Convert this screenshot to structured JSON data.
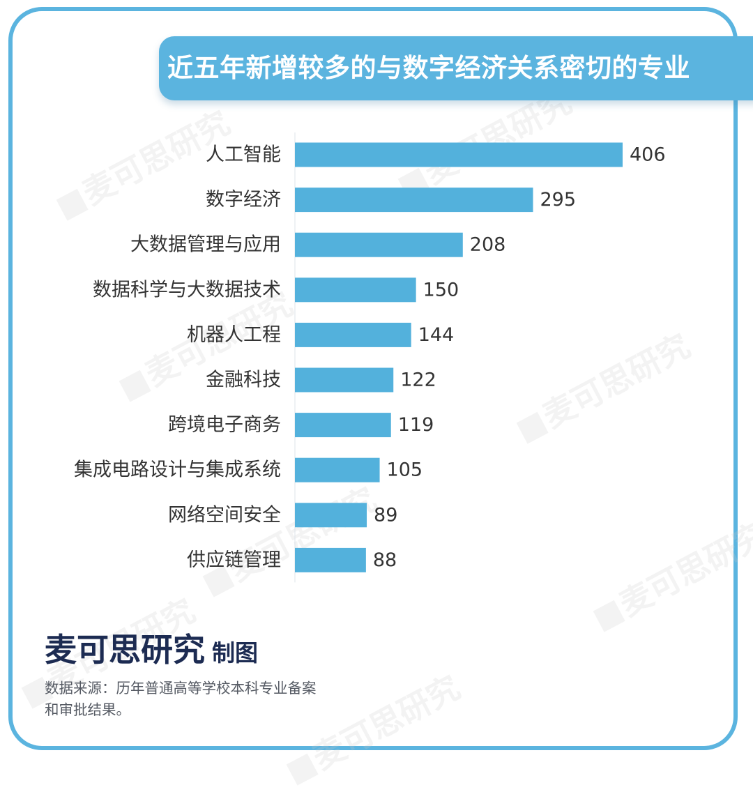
{
  "title": "近五年新增较多的与数字经济关系密切的专业",
  "brand": {
    "name": "麦可思研究",
    "suffix": "制图"
  },
  "source": {
    "line1": "数据来源：历年普通高等学校本科专业备案",
    "line2": "和审批结果。"
  },
  "watermark_text": "麦可思研究",
  "colors": {
    "accent": "#5bb4df",
    "bar": "#53b1dc",
    "brand_text": "#1c2b52",
    "label_text": "#333333"
  },
  "chart_data": {
    "type": "bar",
    "orientation": "horizontal",
    "categories": [
      "人工智能",
      "数字经济",
      "大数据管理与应用",
      "数据科学与大数据技术",
      "机器人工程",
      "金融科技",
      "跨境电子商务",
      "集成电路设计与集成系统",
      "网络空间安全",
      "供应链管理"
    ],
    "values": [
      406,
      295,
      208,
      150,
      144,
      122,
      119,
      105,
      89,
      88
    ],
    "data_labels": true,
    "grid": false,
    "legend": "none"
  }
}
